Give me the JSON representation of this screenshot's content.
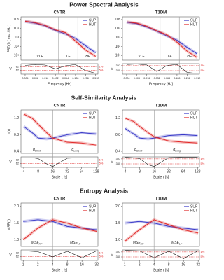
{
  "chart_data": [
    {
      "type": "line",
      "section": "Power Spectral Analysis",
      "title": "CNTR",
      "ylabel": "PSD(f) [ ms² / Hz ]",
      "xlabel": "Frequency [Hz]",
      "xscale": "log",
      "yscale": "log",
      "xlim": [
        0.003,
        0.6
      ],
      "ylim": [
        3,
        200000
      ],
      "xticks": [
        0.004,
        0.008,
        0.016,
        0.032,
        0.064,
        0.128,
        0.256,
        0.512
      ],
      "yticks": [
        {
          "value": 10,
          "label": "10¹"
        },
        {
          "value": 100,
          "label": "10²"
        },
        {
          "value": 1000,
          "label": "10³"
        },
        {
          "value": 10000,
          "label": "10⁴"
        },
        {
          "value": 100000,
          "label": "10⁵"
        }
      ],
      "x": [
        0.004,
        0.008,
        0.016,
        0.032,
        0.064,
        0.128,
        0.256,
        0.512
      ],
      "series": [
        {
          "name": "SUP",
          "color": "#3a3ac8",
          "values": [
            60000,
            40000,
            20000,
            6000,
            2500,
            800,
            120,
            20
          ]
        },
        {
          "name": "HUT",
          "color": "#e02828",
          "values": [
            65000,
            45000,
            22000,
            7000,
            3500,
            400,
            40,
            8
          ]
        }
      ],
      "bounds": [
        0.04,
        0.15
      ],
      "annotations": [
        {
          "main": "VLF"
        },
        {
          "main": "LF"
        },
        {
          "main": "HF"
        }
      ],
      "strip": {
        "ylabel": "V",
        "ylim": [
          40,
          100
        ],
        "yticks": [
          62,
          82
        ],
        "values": [
          90,
          95,
          92,
          70,
          88,
          95,
          60,
          45
        ],
        "lines": [
          {
            "label": "1%",
            "value": 82
          },
          {
            "label": "5%",
            "value": 62
          }
        ]
      }
    },
    {
      "type": "line",
      "title": "T1DM",
      "xlabel": "Frequency [Hz]",
      "xscale": "log",
      "yscale": "log",
      "xlim": [
        0.003,
        0.6
      ],
      "ylim": [
        3,
        200000
      ],
      "xticks": [
        0.004,
        0.008,
        0.016,
        0.032,
        0.064,
        0.128,
        0.256,
        0.512
      ],
      "yticks": [
        {
          "value": 10,
          "label": "10¹"
        },
        {
          "value": 100,
          "label": "10²"
        },
        {
          "value": 1000,
          "label": "10³"
        },
        {
          "value": 10000,
          "label": "10⁴"
        },
        {
          "value": 100000,
          "label": "10⁵"
        }
      ],
      "x": [
        0.004,
        0.008,
        0.016,
        0.032,
        0.064,
        0.128,
        0.256,
        0.512
      ],
      "series": [
        {
          "name": "SUP",
          "color": "#3a3ac8",
          "values": [
            50000,
            35000,
            15000,
            5000,
            1500,
            500,
            80,
            15
          ]
        },
        {
          "name": "HUT",
          "color": "#e02828",
          "values": [
            55000,
            40000,
            18000,
            5500,
            2000,
            300,
            30,
            6
          ]
        }
      ],
      "bounds": [
        0.04,
        0.15
      ],
      "annotations": [
        {
          "main": "VLF"
        },
        {
          "main": "LF"
        },
        {
          "main": "HF"
        }
      ],
      "strip": {
        "ylabel": "V",
        "ylim": [
          300,
          420
        ],
        "yticks": [
          340,
          397
        ],
        "values": [
          410,
          415,
          405,
          330,
          400,
          410,
          320,
          310
        ],
        "lines": [
          {
            "label": "1%",
            "value": 397
          },
          {
            "label": "5%",
            "value": 340
          }
        ]
      }
    },
    {
      "type": "line",
      "section": "Self-Similarity Analysis",
      "title": "CNTR",
      "ylabel": "α(τ)",
      "xlabel": "Scale τ [s]",
      "xscale": "log",
      "xlim": [
        3.5,
        140
      ],
      "ylim": [
        0.35,
        1.4
      ],
      "xticks": [
        4,
        8,
        16,
        32,
        64,
        128
      ],
      "yticks": [
        0.4,
        0.8,
        1.2
      ],
      "x": [
        4,
        6,
        8,
        12,
        16,
        32,
        64,
        128
      ],
      "series": [
        {
          "name": "SUP",
          "color": "#3a3ac8",
          "values": [
            1.0,
            0.85,
            0.72,
            0.7,
            0.72,
            0.8,
            0.85,
            0.82
          ]
        },
        {
          "name": "HUT",
          "color": "#e02828",
          "values": [
            1.3,
            1.2,
            1.05,
            0.85,
            0.72,
            0.62,
            0.6,
            0.55
          ]
        }
      ],
      "bounds": [
        16
      ],
      "annotations": [
        {
          "main": "α",
          "sub": "Short"
        },
        {
          "main": "α",
          "sub": "Long"
        }
      ],
      "strip": {
        "ylabel": "V",
        "ylim": [
          40,
          100
        ],
        "yticks": [
          62,
          82
        ],
        "values": [
          95,
          95,
          90,
          60,
          45,
          92,
          95,
          95
        ],
        "lines": [
          {
            "label": "1%",
            "value": 82
          },
          {
            "label": "5%",
            "value": 62
          }
        ]
      }
    },
    {
      "type": "line",
      "title": "T1DM",
      "xlabel": "Scale τ [s]",
      "xscale": "log",
      "xlim": [
        3.5,
        140
      ],
      "ylim": [
        0.35,
        1.4
      ],
      "xticks": [
        4,
        8,
        16,
        32,
        64,
        128
      ],
      "yticks": [
        0.4,
        0.8,
        1.2
      ],
      "x": [
        4,
        6,
        8,
        12,
        16,
        32,
        64,
        128
      ],
      "series": [
        {
          "name": "SUP",
          "color": "#3a3ac8",
          "values": [
            0.95,
            0.82,
            0.72,
            0.7,
            0.72,
            0.78,
            0.8,
            0.78
          ]
        },
        {
          "name": "HUT",
          "color": "#e02828",
          "values": [
            1.2,
            1.12,
            1.0,
            0.85,
            0.75,
            0.65,
            0.62,
            0.6
          ]
        }
      ],
      "bounds": [
        16
      ],
      "annotations": [
        {
          "main": "α",
          "sub": "Short"
        },
        {
          "main": "α",
          "sub": "Long"
        }
      ],
      "strip": {
        "ylabel": "V",
        "ylim": [
          300,
          420
        ],
        "yticks": [
          340,
          397
        ],
        "values": [
          415,
          410,
          400,
          330,
          310,
          412,
          415,
          415
        ],
        "lines": [
          {
            "label": "1%",
            "value": 397
          },
          {
            "label": "5%",
            "value": 340
          }
        ]
      }
    },
    {
      "type": "line",
      "section": "Entropy Analysis",
      "title": "CNTR",
      "ylabel": "MSE(τ)",
      "xlabel": "Scale τ [s]",
      "xscale": "log",
      "xlim": [
        0.9,
        34
      ],
      "ylim": [
        0.8,
        2.1
      ],
      "xticks": [
        1,
        2,
        4,
        8,
        16,
        32
      ],
      "yticks": [
        {
          "value": 1,
          "label": "1.0"
        },
        1.5,
        {
          "value": 2,
          "label": "2.0"
        }
      ],
      "x": [
        1,
        2,
        4,
        8,
        16,
        32
      ],
      "series": [
        {
          "name": "SUP",
          "color": "#3a3ac8",
          "values": [
            1.55,
            1.6,
            1.55,
            1.4,
            1.35,
            1.3
          ]
        },
        {
          "name": "HUT",
          "color": "#e02828",
          "values": [
            1.0,
            1.35,
            1.6,
            1.5,
            1.35,
            1.25
          ]
        }
      ],
      "bounds": [
        4
      ],
      "annotations": [
        {
          "main": "MSE",
          "sub": "HF"
        },
        {
          "main": "MSE",
          "sub": "LF"
        }
      ],
      "strip": {
        "ylabel": "V",
        "ylim": [
          40,
          100
        ],
        "yticks": [
          62,
          82
        ],
        "values": [
          95,
          90,
          60,
          92,
          55,
          95
        ],
        "lines": [
          {
            "label": "1%",
            "value": 82
          },
          {
            "label": "5%",
            "value": 62
          }
        ]
      }
    },
    {
      "type": "line",
      "title": "T1DM",
      "xlabel": "Scale τ [s]",
      "xscale": "log",
      "xlim": [
        0.9,
        34
      ],
      "ylim": [
        0.8,
        2.1
      ],
      "xticks": [
        1,
        2,
        4,
        8,
        16,
        32
      ],
      "yticks": [
        {
          "value": 1,
          "label": "1.0"
        },
        1.5,
        {
          "value": 2,
          "label": "2.0"
        }
      ],
      "x": [
        1,
        2,
        4,
        8,
        16,
        32
      ],
      "series": [
        {
          "name": "SUP",
          "color": "#3a3ac8",
          "values": [
            1.5,
            1.55,
            1.5,
            1.4,
            1.35,
            1.3
          ]
        },
        {
          "name": "HUT",
          "color": "#e02828",
          "values": [
            0.95,
            1.3,
            1.6,
            1.45,
            1.3,
            1.2
          ]
        }
      ],
      "bounds": [
        4
      ],
      "annotations": [
        {
          "main": "MSE",
          "sub": "HF"
        },
        {
          "main": "MSE",
          "sub": "LF"
        }
      ],
      "strip": {
        "ylabel": "V",
        "ylim": [
          300,
          420
        ],
        "yticks": [
          340,
          397
        ],
        "values": [
          415,
          410,
          330,
          405,
          320,
          412
        ],
        "lines": [
          {
            "label": "1%",
            "value": 397
          },
          {
            "label": "5%",
            "value": 340
          }
        ]
      }
    }
  ]
}
